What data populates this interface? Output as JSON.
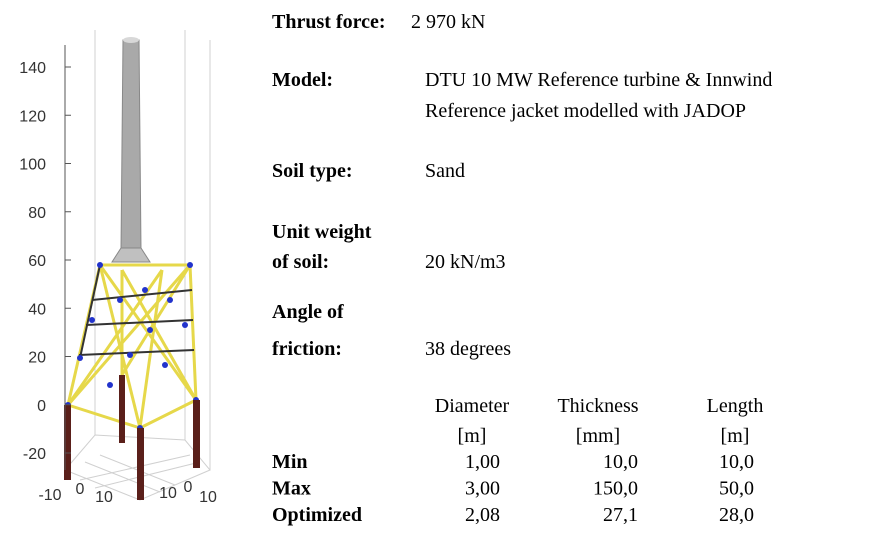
{
  "plot": {
    "zticks": [
      140,
      120,
      100,
      80,
      60,
      40,
      20,
      0,
      -20
    ],
    "xticks": [
      -10,
      0,
      10
    ],
    "yticks": [
      "10",
      0,
      10
    ]
  },
  "info": [
    {
      "label": "Thrust force:",
      "value": "2 970 kN"
    },
    {
      "label": "Model:",
      "value": "DTU 10 MW Reference turbine & Innwind",
      "value2": "Reference jacket modelled with JADOP"
    },
    {
      "label": "Soil type:",
      "value": "Sand"
    },
    {
      "label": "Unit weight",
      "label2": "of soil:",
      "value": "20 kN/m3"
    },
    {
      "label": "Angle of",
      "label2": "friction:",
      "value": "38 degrees"
    }
  ],
  "table": {
    "header": [
      "Diameter",
      "Thickness",
      "Length"
    ],
    "units": [
      "[m]",
      "[mm]",
      "[m]"
    ],
    "rows": [
      [
        "Min",
        "1,00",
        "10,0",
        "10,0"
      ],
      [
        "Max",
        "3,00",
        "150,0",
        "50,0"
      ],
      [
        "Optimized",
        "2,08",
        "27,1",
        "28,0"
      ]
    ]
  }
}
